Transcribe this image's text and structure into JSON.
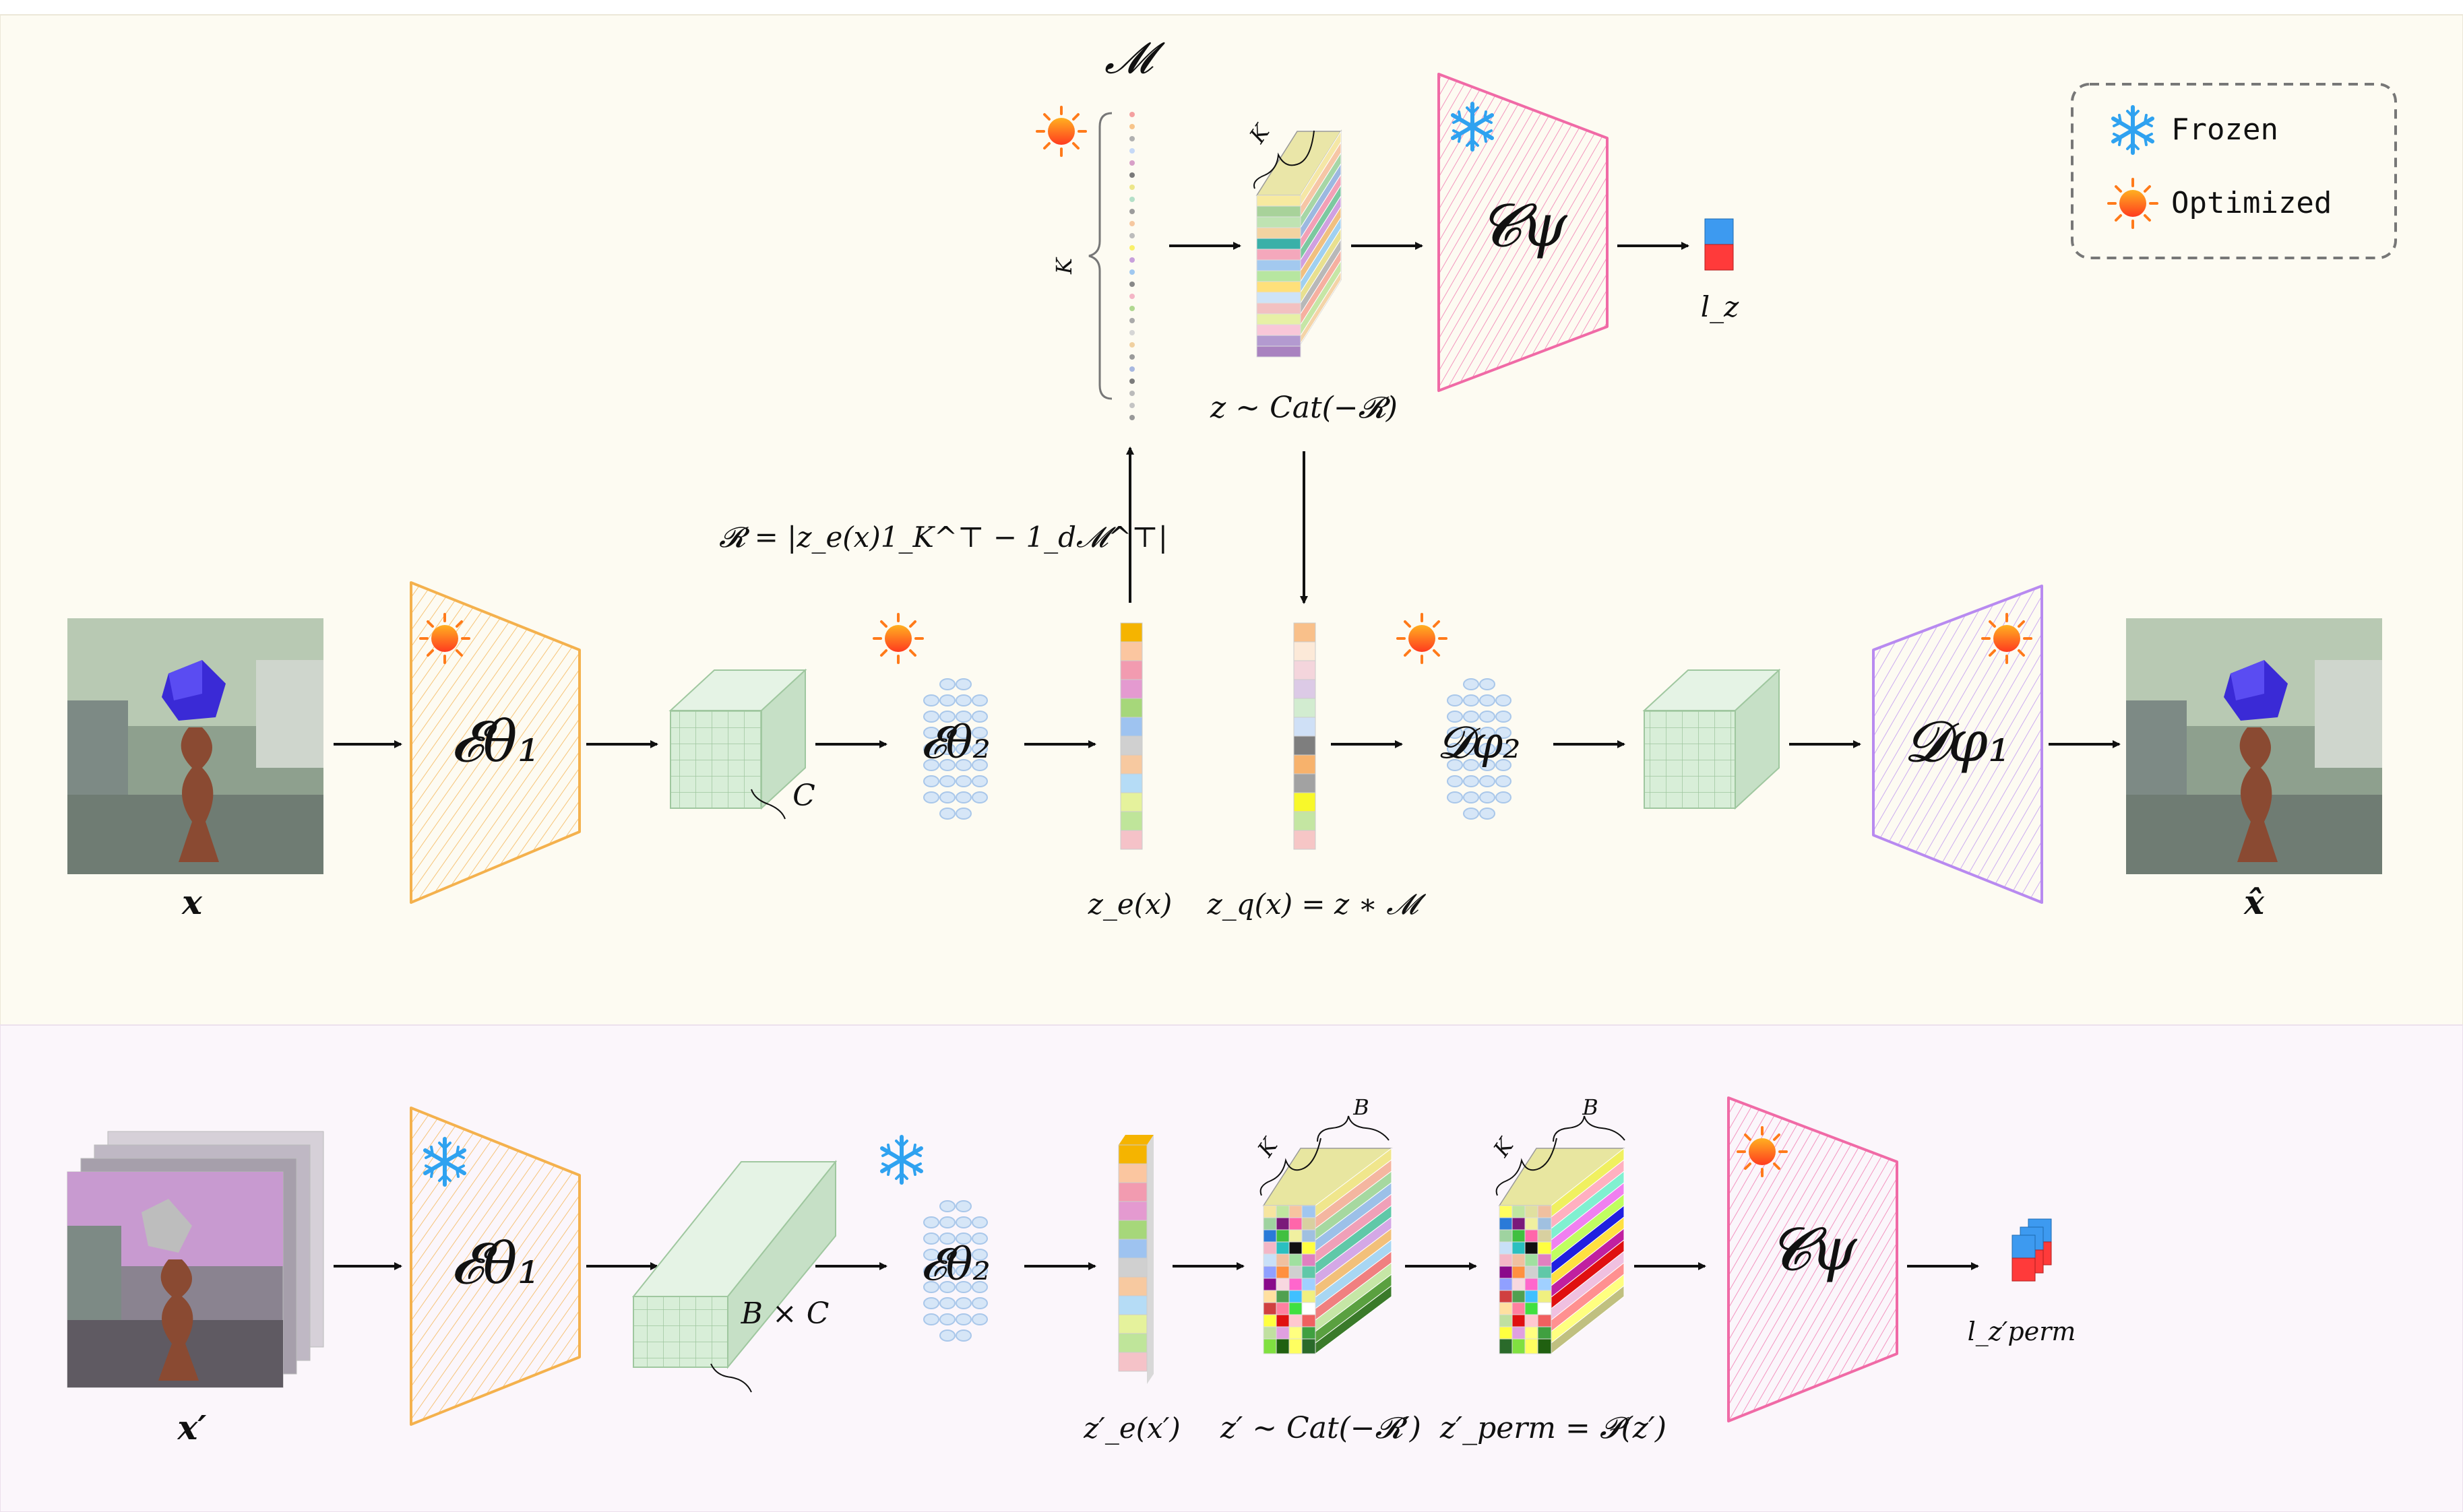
{
  "legend": {
    "frozen": "Frozen",
    "optimized": "Optimized"
  },
  "icons": {
    "frozen": "snowflake-icon",
    "optimized": "sun-icon"
  },
  "colors": {
    "top_panel_bg": "#fdfbf2",
    "bottom_panel_bg": "#fbf6fb",
    "encoder_orange": "#f4b14d",
    "classifier_pink": "#f06aa6",
    "decoder_purple": "#b88af0",
    "nn_blue": "#b9d4ef",
    "feature_green": "#cfe8cf"
  },
  "top": {
    "codebook_label": "𝓜",
    "k_label": "K",
    "r_equation": "𝓡 = |z_e(x)1_K^⊤ − 1_d𝓜^⊤|",
    "sample_label": "z ∼ Cat(−𝓡)",
    "k_brace_label": "K",
    "classifier": "𝓒ψ",
    "lz_label": "l_z",
    "input_label": "x",
    "enc1": "𝓔θ₁",
    "c_label": "C",
    "enc2": "𝓔θ₂",
    "ze_label": "z_e(x)",
    "zq_label": "z_q(x) = z ∗ 𝓜",
    "dec2": "𝓓φ₂",
    "dec1": "𝓓φ₁",
    "output_label": "x̂"
  },
  "bottom": {
    "input_label": "x′",
    "enc1": "𝓔θ₁",
    "bc_label": "B × C",
    "enc2": "𝓔θ₂",
    "ze_label": "z′_e(x′)",
    "k_label_a": "K",
    "b_label_a": "B",
    "sample_label": "z′ ∼ Cat(−𝓡′)",
    "k_label_b": "K",
    "b_label_b": "B",
    "perm_label": "z′_perm = 𝓟(z′)",
    "classifier": "𝓒ψ",
    "lz_label": "l_z′perm"
  }
}
